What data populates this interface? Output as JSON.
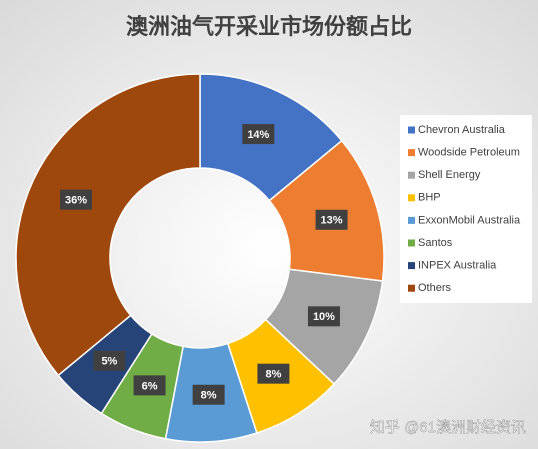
{
  "chart_data": {
    "type": "doughnut",
    "title": "澳洲油气开采业市场份额占比",
    "categories": [
      "Chevron Australia",
      "Woodside Petroleum",
      "Shell Energy",
      "BHP",
      "ExxonMobil Australia",
      "Santos",
      "INPEX Australia",
      "Others"
    ],
    "values": [
      14,
      13,
      10,
      8,
      8,
      6,
      5,
      36
    ],
    "value_labels": [
      "14%",
      "13%",
      "10%",
      "8%",
      "8%",
      "6%",
      "5%",
      "36%"
    ],
    "colors": [
      "#4472c4",
      "#ed7d31",
      "#a5a5a5",
      "#ffc000",
      "#5b9bd5",
      "#70ad47",
      "#264478",
      "#9e480e"
    ],
    "legend": "right",
    "watermark": "知乎 @61澳洲财经资讯"
  }
}
